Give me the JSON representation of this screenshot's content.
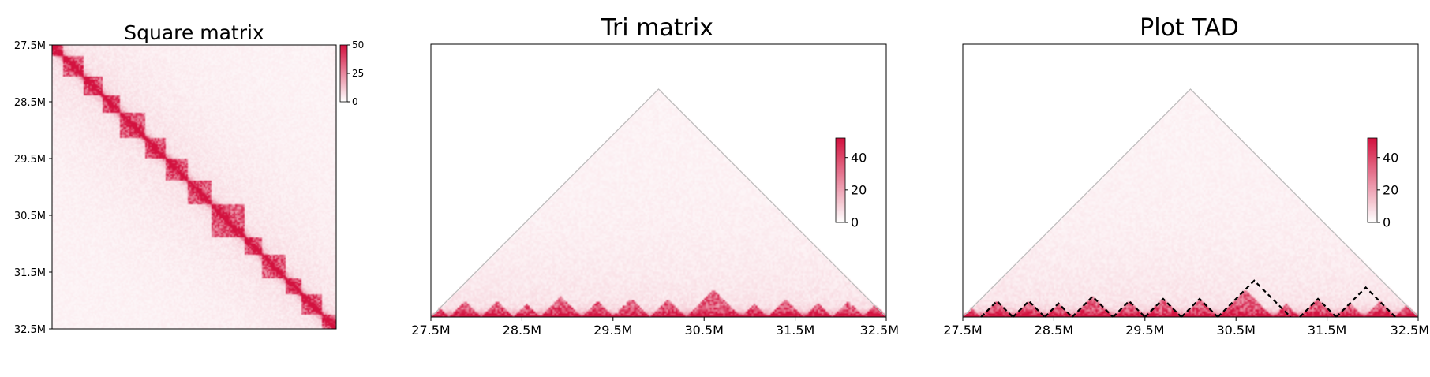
{
  "colors": {
    "low": "#ffffff",
    "high": "#d3123f",
    "frame": "#000000",
    "triangle_outline": "#bbbbbb",
    "tad_boundary": "#000000"
  },
  "chart_data": [
    {
      "type": "heatmap",
      "title": "Square matrix",
      "x_range_bp": [
        27500000,
        32500000
      ],
      "y_range_bp": [
        27500000,
        32500000
      ],
      "y_ticks": [
        "27.5M",
        "28.5M",
        "29.5M",
        "30.5M",
        "31.5M",
        "32.5M"
      ],
      "colorbar": {
        "min": 0,
        "max": 50,
        "ticks": [
          "50",
          "25",
          "0"
        ]
      },
      "domains_bp": [
        [
          27500000,
          27700000
        ],
        [
          27700000,
          28050000
        ],
        [
          28050000,
          28400000
        ],
        [
          28400000,
          28700000
        ],
        [
          28700000,
          29150000
        ],
        [
          29150000,
          29500000
        ],
        [
          29500000,
          29900000
        ],
        [
          29900000,
          30300000
        ],
        [
          30300000,
          30900000
        ],
        [
          30900000,
          31200000
        ],
        [
          31200000,
          31600000
        ],
        [
          31600000,
          31900000
        ],
        [
          31900000,
          32250000
        ],
        [
          32250000,
          32500000
        ]
      ]
    },
    {
      "type": "heatmap",
      "title": "Tri matrix",
      "x_range_bp": [
        27500000,
        32500000
      ],
      "x_ticks": [
        "27.5M",
        "28.5M",
        "29.5M",
        "30.5M",
        "31.5M",
        "32.5M"
      ],
      "colorbar": {
        "min": 0,
        "max": 40,
        "ticks": [
          "40",
          "20",
          "0"
        ]
      },
      "max_distance_bp": 2500000
    },
    {
      "type": "heatmap",
      "title": "Plot TAD",
      "x_range_bp": [
        27500000,
        32500000
      ],
      "x_ticks": [
        "27.5M",
        "28.5M",
        "29.5M",
        "30.5M",
        "31.5M",
        "32.5M"
      ],
      "colorbar": {
        "min": 0,
        "max": 40,
        "ticks": [
          "40",
          "20",
          "0"
        ]
      },
      "max_distance_bp": 2500000,
      "tad_boundaries_bp": [
        [
          27700000,
          28050000
        ],
        [
          28050000,
          28400000
        ],
        [
          28400000,
          28700000
        ],
        [
          28700000,
          29150000
        ],
        [
          29150000,
          29500000
        ],
        [
          29500000,
          29900000
        ],
        [
          29900000,
          30300000
        ],
        [
          30300000,
          31100000
        ],
        [
          31200000,
          31600000
        ],
        [
          31600000,
          32250000
        ]
      ]
    }
  ]
}
